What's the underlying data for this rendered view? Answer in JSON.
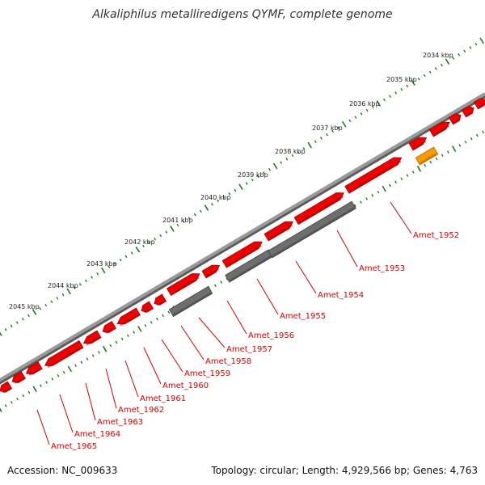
{
  "header": {
    "title": "Alkaliphilus metalliredigens QYMF, complete genome"
  },
  "footer": {
    "accession": "Accession: NC_009633",
    "summary": "Topology: circular; Length: 4,929,566 bp; Genes: 4,763"
  },
  "colors": {
    "cds": "#ee0000",
    "cds_dark": "#a00000",
    "other": "#6e6e6e",
    "rna": "#ff9900",
    "backbone": "#8a8a8a",
    "tick": "#1f7a1f",
    "label": "#d00000"
  },
  "scale": {
    "ticks": [
      "2034 kbp",
      "2035 kbp",
      "2036 kbp",
      "2037 kbp",
      "2038 kbp",
      "2039 kbp",
      "2040 kbp",
      "2041 kbp",
      "2042 kbp",
      "2043 kbp",
      "2044 kbp",
      "2045 kbp"
    ]
  },
  "genes": [
    {
      "name": "Amet_1952"
    },
    {
      "name": "Amet_1953"
    },
    {
      "name": "Amet_1954"
    },
    {
      "name": "Amet_1955"
    },
    {
      "name": "Amet_1956"
    },
    {
      "name": "Amet_1957"
    },
    {
      "name": "Amet_1958"
    },
    {
      "name": "Amet_1959"
    },
    {
      "name": "Amet_1960"
    },
    {
      "name": "Amet_1961"
    },
    {
      "name": "Amet_1962"
    },
    {
      "name": "Amet_1963"
    },
    {
      "name": "Amet_1964"
    },
    {
      "name": "Amet_1965"
    }
  ]
}
